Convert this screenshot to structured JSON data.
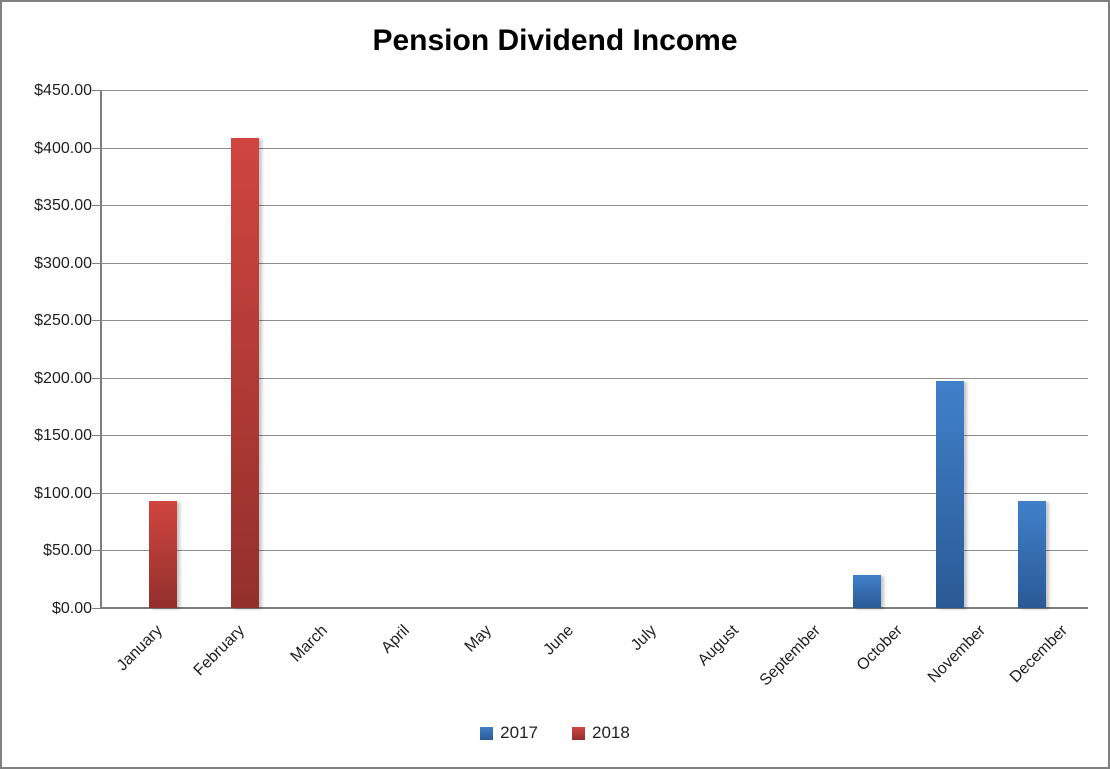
{
  "window": {
    "border_color": "#808080",
    "background_color": "#ffffff"
  },
  "chart_data": {
    "type": "bar",
    "title": "Pension Dividend Income",
    "xlabel": "",
    "ylabel": "",
    "categories": [
      "January",
      "February",
      "March",
      "April",
      "May",
      "June",
      "July",
      "August",
      "September",
      "October",
      "November",
      "December"
    ],
    "series": [
      {
        "name": "2017",
        "color_top": "#4080ca",
        "color_bottom": "#2a5a95",
        "legend_color": "#3574ba",
        "values": [
          0,
          0,
          0,
          0,
          0,
          0,
          0,
          0,
          0,
          29,
          197,
          93
        ]
      },
      {
        "name": "2018",
        "color_top": "#d04540",
        "color_bottom": "#93302c",
        "legend_color": "#bf3430",
        "values": [
          93,
          408,
          0,
          0,
          0,
          0,
          0,
          0,
          0,
          0,
          0,
          0
        ]
      }
    ],
    "ylim": [
      0,
      450
    ],
    "ytick_step": 50,
    "ytick_labels_top_down": [
      "$450.00",
      "$400.00",
      "$350.00",
      "$300.00",
      "$250.00",
      "$200.00",
      "$150.00",
      "$100.00",
      "$50.00",
      "$0.00"
    ],
    "grid": true,
    "gridline_color": "#8e8e8e",
    "axis_color": "#7d7d7d",
    "legend_position": "bottom"
  }
}
